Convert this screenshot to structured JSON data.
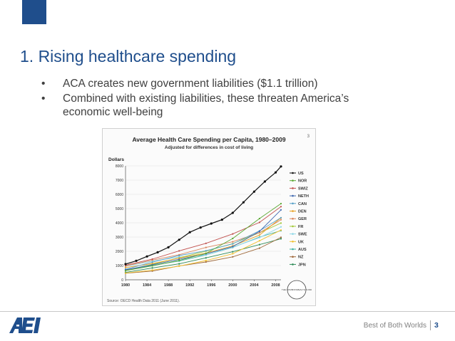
{
  "slide": {
    "title": "1. Rising healthcare spending",
    "bullets": [
      "ACA creates new government liabilities ($1.1 trillion)",
      "Combined with existing liabilities, these threaten America’s economic well-being"
    ],
    "bullet_char": "•"
  },
  "footer": {
    "tagline": "Best of Both Worlds",
    "page_number": "3",
    "logo_text": "AEI"
  },
  "colors": {
    "accent": "#1f4e8c",
    "bullet_text": "#404040"
  },
  "chart_data": {
    "type": "line",
    "title": "Average Health Care Spending per Capita, 1980–2009",
    "subtitle": "Adjusted for differences in cost of living",
    "ylabel": "Dollars",
    "corner_number": "3",
    "source": "Source: OECD Health Data 2011 (June 2011).",
    "badge_text": "THE COMMONWEALTH FUND",
    "x_ticks": [
      "1980",
      "1984",
      "1988",
      "1992",
      "1996",
      "2000",
      "2004",
      "2008"
    ],
    "y_ticks": [
      "0",
      "1000",
      "2000",
      "3000",
      "4000",
      "5000",
      "6000",
      "7000",
      "8000"
    ],
    "xlim": [
      1980,
      2009
    ],
    "ylim": [
      0,
      8000
    ],
    "legend_position": "right",
    "series": [
      {
        "name": "US",
        "color": "#111111",
        "points": [
          [
            1980,
            1100
          ],
          [
            1982,
            1330
          ],
          [
            1984,
            1640
          ],
          [
            1986,
            1930
          ],
          [
            1988,
            2280
          ],
          [
            1990,
            2810
          ],
          [
            1992,
            3340
          ],
          [
            1994,
            3670
          ],
          [
            1996,
            3950
          ],
          [
            1998,
            4220
          ],
          [
            2000,
            4700
          ],
          [
            2002,
            5440
          ],
          [
            2004,
            6190
          ],
          [
            2006,
            6900
          ],
          [
            2008,
            7540
          ],
          [
            2009,
            7960
          ]
        ]
      },
      {
        "name": "NOR",
        "color": "#5aa832",
        "points": [
          [
            1980,
            640
          ],
          [
            1985,
            980
          ],
          [
            1990,
            1360
          ],
          [
            1995,
            1850
          ],
          [
            2000,
            2900
          ],
          [
            2005,
            4300
          ],
          [
            2009,
            5350
          ]
        ]
      },
      {
        "name": "SWIZ",
        "color": "#c0504d",
        "points": [
          [
            1980,
            1020
          ],
          [
            1985,
            1450
          ],
          [
            1990,
            2030
          ],
          [
            1995,
            2560
          ],
          [
            2000,
            3220
          ],
          [
            2005,
            4030
          ],
          [
            2009,
            5140
          ]
        ]
      },
      {
        "name": "NETH",
        "color": "#4169b0",
        "points": [
          [
            1980,
            700
          ],
          [
            1985,
            1050
          ],
          [
            1990,
            1440
          ],
          [
            1995,
            1820
          ],
          [
            2000,
            2330
          ],
          [
            2005,
            3400
          ],
          [
            2009,
            4910
          ]
        ]
      },
      {
        "name": "CAN",
        "color": "#56a0c8",
        "points": [
          [
            1980,
            740
          ],
          [
            1985,
            1240
          ],
          [
            1990,
            1700
          ],
          [
            1995,
            2040
          ],
          [
            2000,
            2520
          ],
          [
            2005,
            3440
          ],
          [
            2009,
            4360
          ]
        ]
      },
      {
        "name": "DEN",
        "color": "#e8a020",
        "points": [
          [
            1980,
            860
          ],
          [
            1985,
            1140
          ],
          [
            1990,
            1520
          ],
          [
            1995,
            1870
          ],
          [
            2000,
            2380
          ],
          [
            2005,
            3140
          ],
          [
            2009,
            4350
          ]
        ]
      },
      {
        "name": "GER",
        "color": "#d9855c",
        "points": [
          [
            1980,
            970
          ],
          [
            1985,
            1380
          ],
          [
            1990,
            1760
          ],
          [
            1995,
            2270
          ],
          [
            2000,
            2670
          ],
          [
            2005,
            3300
          ],
          [
            2009,
            4220
          ]
        ]
      },
      {
        "name": "FR",
        "color": "#a3c93a",
        "points": [
          [
            1980,
            670
          ],
          [
            1985,
            1090
          ],
          [
            1990,
            1540
          ],
          [
            1995,
            2010
          ],
          [
            2000,
            2540
          ],
          [
            2005,
            3300
          ],
          [
            2009,
            3980
          ]
        ]
      },
      {
        "name": "SWE",
        "color": "#8fd8e8",
        "points": [
          [
            1980,
            950
          ],
          [
            1985,
            1310
          ],
          [
            1990,
            1600
          ],
          [
            1995,
            1740
          ],
          [
            2000,
            2290
          ],
          [
            2005,
            2960
          ],
          [
            2009,
            3720
          ]
        ]
      },
      {
        "name": "UK",
        "color": "#f0c030",
        "points": [
          [
            1980,
            470
          ],
          [
            1985,
            680
          ],
          [
            1990,
            960
          ],
          [
            1995,
            1350
          ],
          [
            2000,
            1830
          ],
          [
            2005,
            2740
          ],
          [
            2009,
            3490
          ]
        ]
      },
      {
        "name": "AUS",
        "color": "#3cb0a0",
        "points": [
          [
            1980,
            660
          ],
          [
            1985,
            1000
          ],
          [
            1990,
            1320
          ],
          [
            1995,
            1740
          ],
          [
            2000,
            2270
          ],
          [
            2005,
            3000
          ],
          [
            2009,
            3450
          ]
        ]
      },
      {
        "name": "NZ",
        "color": "#a06a3c",
        "points": [
          [
            1980,
            460
          ],
          [
            1985,
            610
          ],
          [
            1990,
            970
          ],
          [
            1995,
            1250
          ],
          [
            2000,
            1610
          ],
          [
            2005,
            2220
          ],
          [
            2009,
            2980
          ]
        ]
      },
      {
        "name": "JPN",
        "color": "#2e8b57",
        "points": [
          [
            1980,
            520
          ],
          [
            1985,
            830
          ],
          [
            1990,
            1120
          ],
          [
            1995,
            1540
          ],
          [
            2000,
            1970
          ],
          [
            2005,
            2470
          ],
          [
            2009,
            2880
          ]
        ]
      }
    ]
  }
}
